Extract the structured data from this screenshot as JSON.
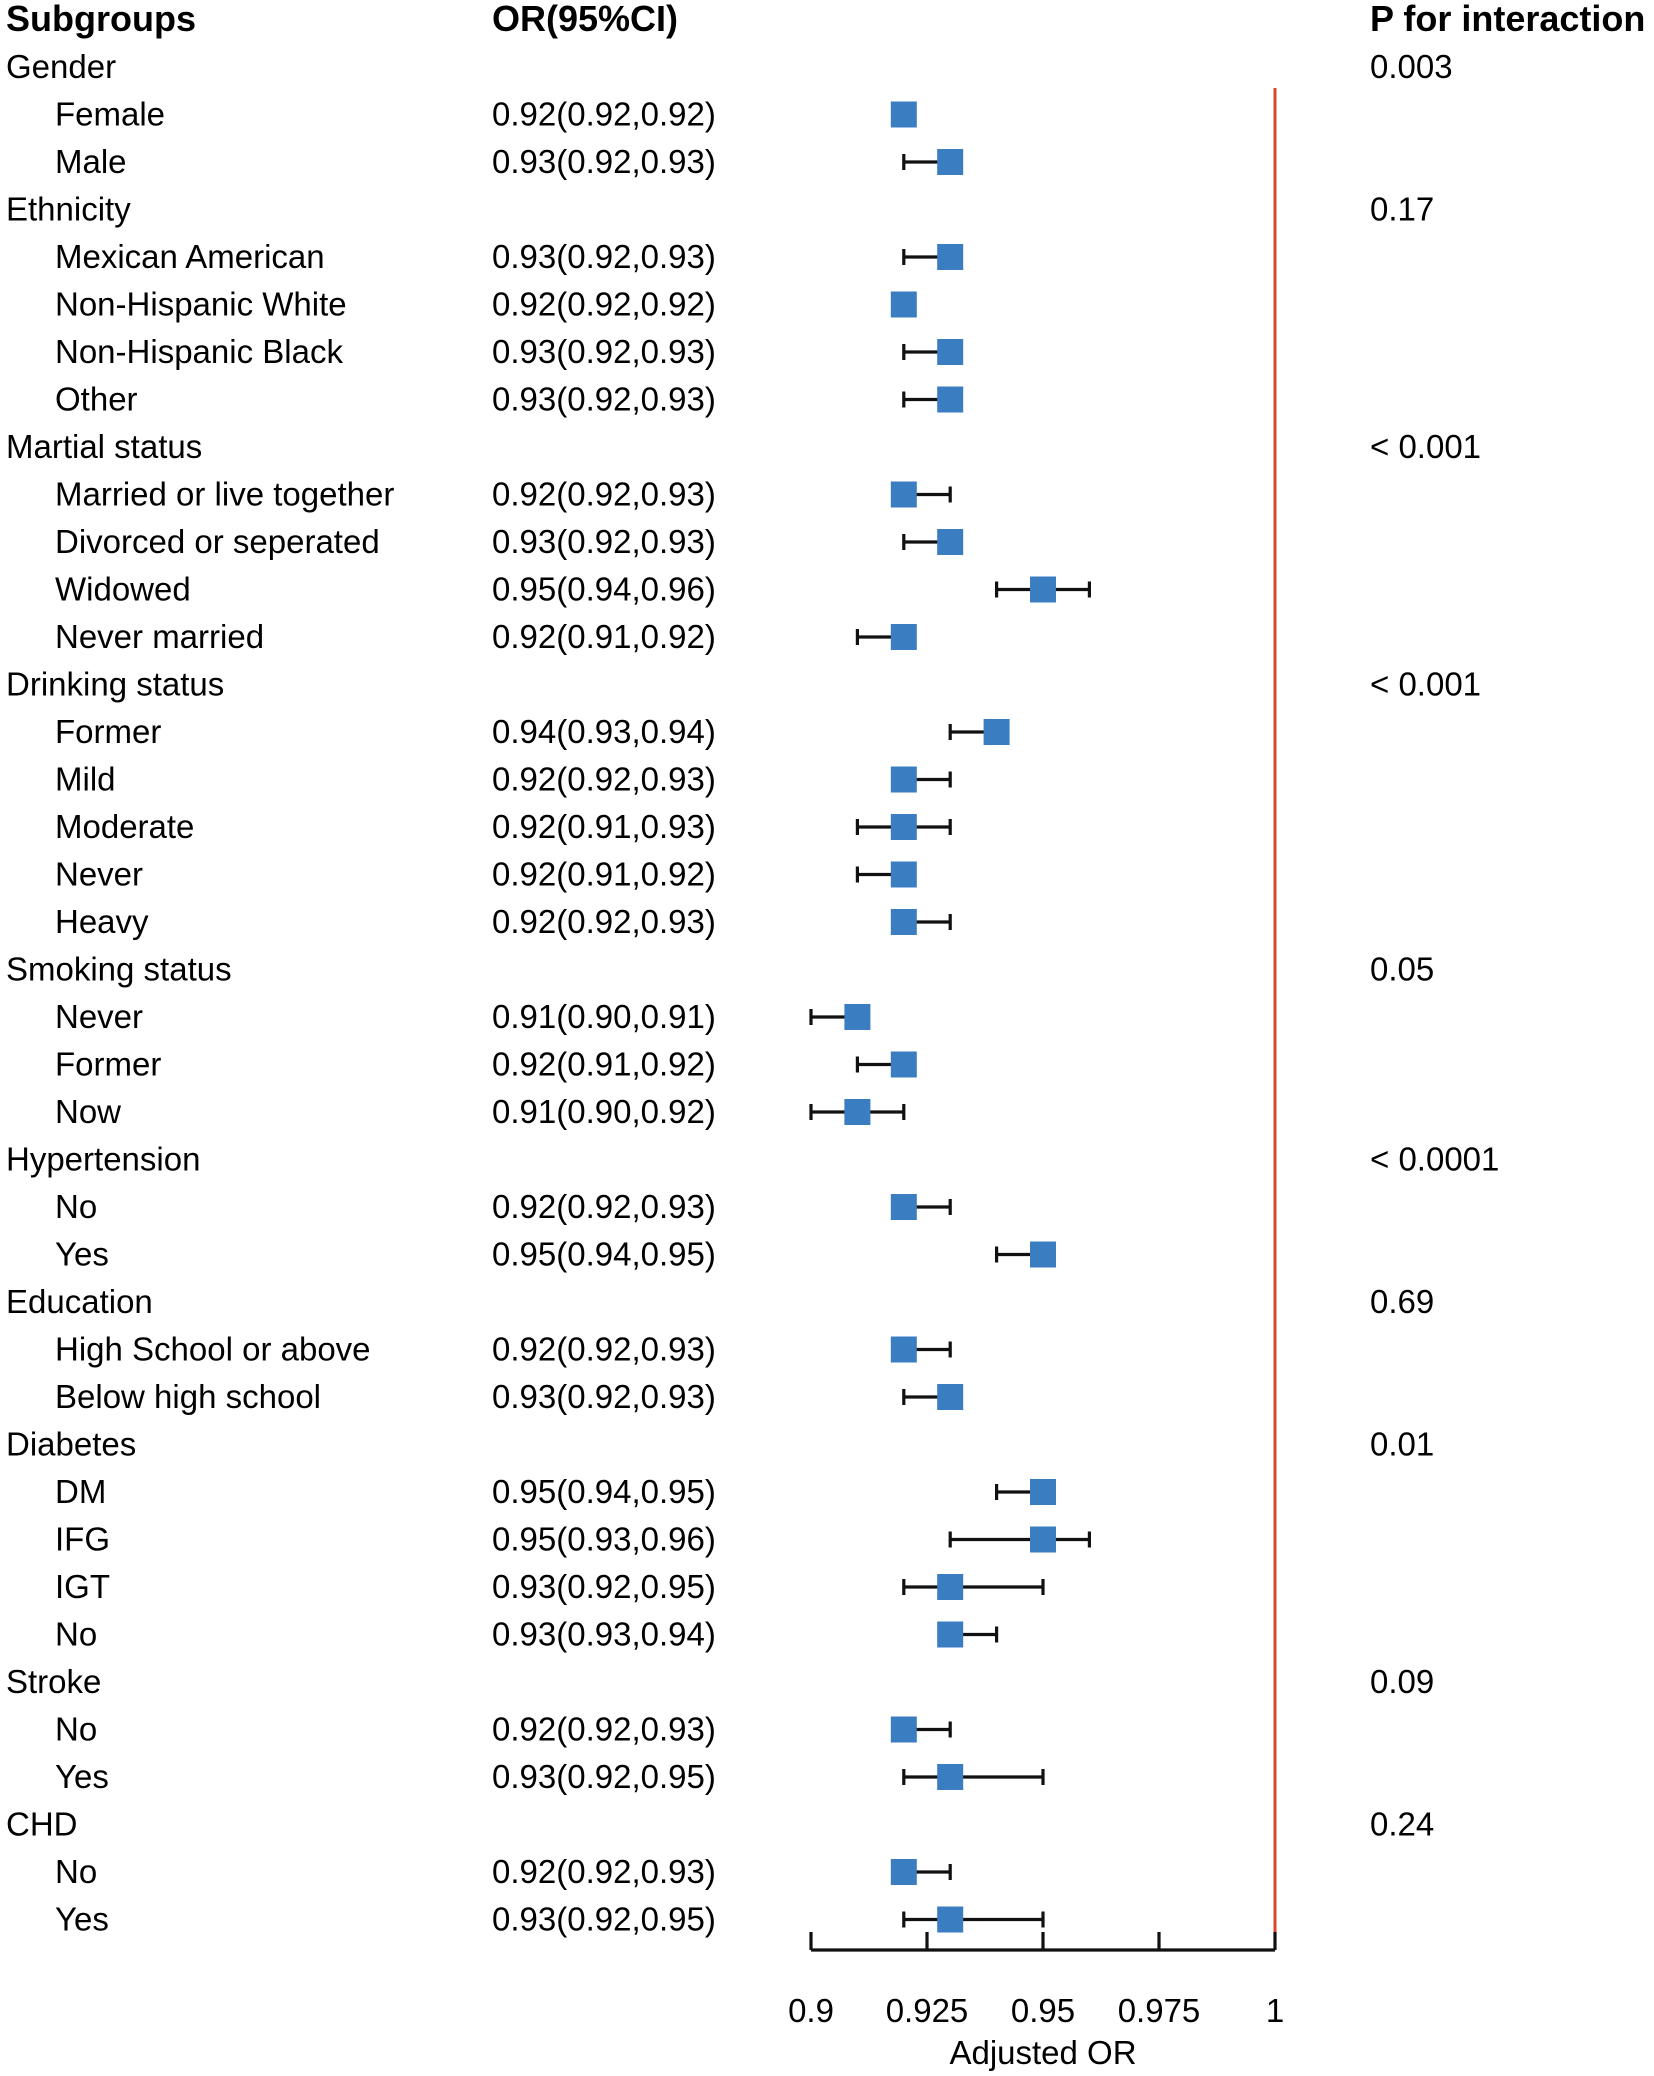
{
  "chart_data": {
    "type": "forest",
    "headers": {
      "subgroups": "Subgroups",
      "or": "OR(95%CI)",
      "p": "P for interaction"
    },
    "xlabel": "Adjusted OR",
    "xlim": [
      0.9,
      1.0
    ],
    "ticks": [
      0.9,
      0.925,
      0.95,
      0.975,
      1.0
    ],
    "tick_labels": [
      "0.9",
      "0.925",
      "0.95",
      "0.975",
      "1"
    ],
    "reference_line": 1.0,
    "reference_color": "#d9472b",
    "marker_color": "#3a7dc1",
    "rows": [
      {
        "kind": "group",
        "label": "Gender",
        "p": "0.003"
      },
      {
        "kind": "sub",
        "label": "Female",
        "text": "0.92(0.92,0.92)",
        "est": 0.92,
        "lo": 0.92,
        "hi": 0.92
      },
      {
        "kind": "sub",
        "label": "Male",
        "text": "0.93(0.92,0.93)",
        "est": 0.93,
        "lo": 0.92,
        "hi": 0.93
      },
      {
        "kind": "group",
        "label": "Ethnicity",
        "p": "0.17"
      },
      {
        "kind": "sub",
        "label": "Mexican American",
        "text": "0.93(0.92,0.93)",
        "est": 0.93,
        "lo": 0.92,
        "hi": 0.93
      },
      {
        "kind": "sub",
        "label": "Non-Hispanic White",
        "text": "0.92(0.92,0.92)",
        "est": 0.92,
        "lo": 0.92,
        "hi": 0.92
      },
      {
        "kind": "sub",
        "label": "Non-Hispanic Black",
        "text": "0.93(0.92,0.93)",
        "est": 0.93,
        "lo": 0.92,
        "hi": 0.93
      },
      {
        "kind": "sub",
        "label": "Other",
        "text": "0.93(0.92,0.93)",
        "est": 0.93,
        "lo": 0.92,
        "hi": 0.93
      },
      {
        "kind": "group",
        "label": "Martial status",
        "p": "< 0.001"
      },
      {
        "kind": "sub",
        "label": "Married or live together",
        "text": "0.92(0.92,0.93)",
        "est": 0.92,
        "lo": 0.92,
        "hi": 0.93
      },
      {
        "kind": "sub",
        "label": "Divorced or seperated",
        "text": "0.93(0.92,0.93)",
        "est": 0.93,
        "lo": 0.92,
        "hi": 0.93
      },
      {
        "kind": "sub",
        "label": "Widowed",
        "text": "0.95(0.94,0.96)",
        "est": 0.95,
        "lo": 0.94,
        "hi": 0.96
      },
      {
        "kind": "sub",
        "label": "Never married",
        "text": "0.92(0.91,0.92)",
        "est": 0.92,
        "lo": 0.91,
        "hi": 0.92
      },
      {
        "kind": "group",
        "label": "Drinking status",
        "p": "< 0.001"
      },
      {
        "kind": "sub",
        "label": "Former",
        "text": "0.94(0.93,0.94)",
        "est": 0.94,
        "lo": 0.93,
        "hi": 0.94
      },
      {
        "kind": "sub",
        "label": "Mild",
        "text": "0.92(0.92,0.93)",
        "est": 0.92,
        "lo": 0.92,
        "hi": 0.93
      },
      {
        "kind": "sub",
        "label": "Moderate",
        "text": "0.92(0.91,0.93)",
        "est": 0.92,
        "lo": 0.91,
        "hi": 0.93
      },
      {
        "kind": "sub",
        "label": "Never",
        "text": "0.92(0.91,0.92)",
        "est": 0.92,
        "lo": 0.91,
        "hi": 0.92
      },
      {
        "kind": "sub",
        "label": "Heavy",
        "text": "0.92(0.92,0.93)",
        "est": 0.92,
        "lo": 0.92,
        "hi": 0.93
      },
      {
        "kind": "group",
        "label": "Smoking  status",
        "p": "0.05"
      },
      {
        "kind": "sub",
        "label": "Never",
        "text": "0.91(0.90,0.91)",
        "est": 0.91,
        "lo": 0.9,
        "hi": 0.91
      },
      {
        "kind": "sub",
        "label": "Former",
        "text": "0.92(0.91,0.92)",
        "est": 0.92,
        "lo": 0.91,
        "hi": 0.92
      },
      {
        "kind": "sub",
        "label": "Now",
        "text": "0.91(0.90,0.92)",
        "est": 0.91,
        "lo": 0.9,
        "hi": 0.92
      },
      {
        "kind": "group",
        "label": "Hypertension",
        "p": "< 0.0001"
      },
      {
        "kind": "sub",
        "label": "No",
        "text": "0.92(0.92,0.93)",
        "est": 0.92,
        "lo": 0.92,
        "hi": 0.93
      },
      {
        "kind": "sub",
        "label": "Yes",
        "text": "0.95(0.94,0.95)",
        "est": 0.95,
        "lo": 0.94,
        "hi": 0.95
      },
      {
        "kind": "group",
        "label": "Education",
        "p": "0.69"
      },
      {
        "kind": "sub",
        "label": "High School or above",
        "text": "0.92(0.92,0.93)",
        "est": 0.92,
        "lo": 0.92,
        "hi": 0.93
      },
      {
        "kind": "sub",
        "label": "Below high school",
        "text": "0.93(0.92,0.93)",
        "est": 0.93,
        "lo": 0.92,
        "hi": 0.93
      },
      {
        "kind": "group",
        "label": "Diabetes",
        "p": "0.01"
      },
      {
        "kind": "sub",
        "label": "DM",
        "text": "0.95(0.94,0.95)",
        "est": 0.95,
        "lo": 0.94,
        "hi": 0.95
      },
      {
        "kind": "sub",
        "label": "IFG",
        "text": "0.95(0.93,0.96)",
        "est": 0.95,
        "lo": 0.93,
        "hi": 0.96
      },
      {
        "kind": "sub",
        "label": "IGT",
        "text": "0.93(0.92,0.95)",
        "est": 0.93,
        "lo": 0.92,
        "hi": 0.95
      },
      {
        "kind": "sub",
        "label": "No",
        "text": "0.93(0.93,0.94)",
        "est": 0.93,
        "lo": 0.93,
        "hi": 0.94
      },
      {
        "kind": "group",
        "label": "Stroke",
        "p": "0.09"
      },
      {
        "kind": "sub",
        "label": "No",
        "text": "0.92(0.92,0.93)",
        "est": 0.92,
        "lo": 0.92,
        "hi": 0.93
      },
      {
        "kind": "sub",
        "label": "Yes",
        "text": "0.93(0.92,0.95)",
        "est": 0.93,
        "lo": 0.92,
        "hi": 0.95
      },
      {
        "kind": "group",
        "label": "CHD",
        "p": "0.24"
      },
      {
        "kind": "sub",
        "label": "No",
        "text": "0.92(0.92,0.93)",
        "est": 0.92,
        "lo": 0.92,
        "hi": 0.93
      },
      {
        "kind": "sub",
        "label": "Yes",
        "text": "0.93(0.92,0.95)",
        "est": 0.93,
        "lo": 0.92,
        "hi": 0.95
      }
    ]
  }
}
